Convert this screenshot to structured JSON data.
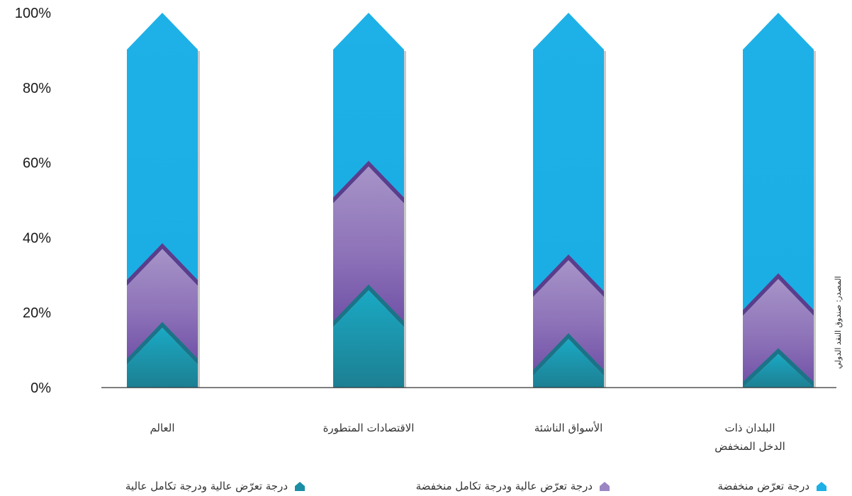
{
  "chart_data": {
    "type": "bar",
    "stacked": true,
    "y_axis_unit": "%",
    "ylim": [
      0,
      100
    ],
    "yticks": [
      "0%",
      "20%",
      "40%",
      "60%",
      "80%",
      "100%"
    ],
    "categories": [
      {
        "lines": [
          "العالم"
        ]
      },
      {
        "lines": [
          "الاقتصادات المتطورة"
        ]
      },
      {
        "lines": [
          "الأسواق الناشئة"
        ]
      },
      {
        "lines": [
          "البلدان ذات",
          "الدخل المنخفض"
        ]
      }
    ],
    "series": [
      {
        "name": "درجة تعرّض عالية ودرجة تكامل عالية",
        "color": "#1a9fb5",
        "values": [
          16,
          26,
          13,
          9
        ]
      },
      {
        "name": "درجة تعرّض عالية ودرجة تكامل منخفضة",
        "color": "#9c86c2",
        "values": [
          21,
          33,
          21,
          20
        ]
      },
      {
        "name": "درجة تعرّض منخفضة",
        "color": "#1db0e6",
        "values": [
          63,
          41,
          66,
          71
        ]
      }
    ],
    "source": "المصدر: صندوق النقد الدولي",
    "legend_position": "bottom"
  }
}
